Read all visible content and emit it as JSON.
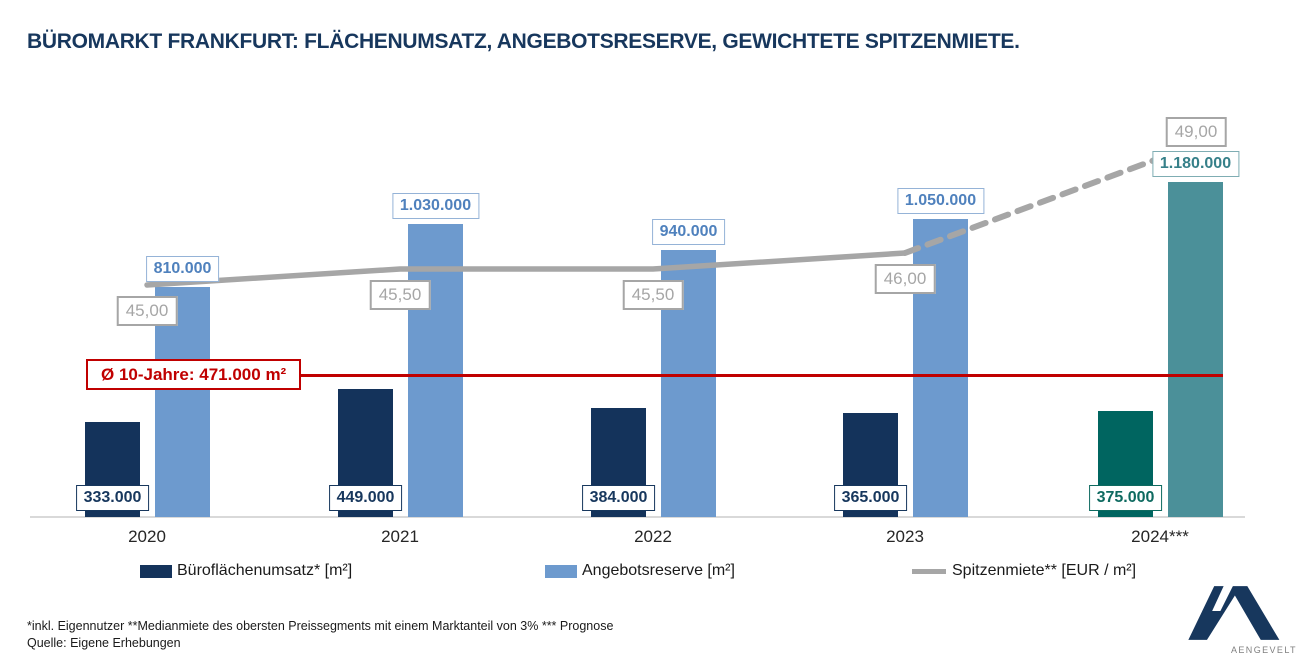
{
  "title": "BÜROMARKT FRANKFURT: FLÄCHENUMSATZ, ANGEBOTSRESERVE, GEWICHTETE SPITZENMIETE.",
  "chart_data": {
    "type": "bar",
    "subtype": "grouped-bar-with-line-combo",
    "categories": [
      "2020",
      "2021",
      "2022",
      "2023",
      "2024***"
    ],
    "series": [
      {
        "name": "Büroflächenumsatz* [m²]",
        "chart_type": "bar",
        "values": [
          333000,
          449000,
          384000,
          365000,
          375000
        ],
        "labels": [
          "333.000",
          "449.000",
          "384.000",
          "365.000",
          "375.000"
        ],
        "color": "#14335B",
        "forecast_color": "#006560",
        "label_color": "#17375D",
        "forecast_label_color": "#0E6A60"
      },
      {
        "name": "Angebotsreserve [m²]",
        "chart_type": "bar",
        "values": [
          810000,
          1030000,
          940000,
          1050000,
          1180000
        ],
        "labels": [
          "810.000",
          "1.030.000",
          "940.000",
          "1.050.000",
          "1.180.000"
        ],
        "color": "#6D9ACE",
        "forecast_color": "#4B9099",
        "label_color": "#4F81BD",
        "forecast_label_color": "#368089",
        "label_border_color": "#95B3D7",
        "forecast_label_border_color": "#7FADB3"
      },
      {
        "name": "Spitzenmiete** [EUR / m²]",
        "chart_type": "line",
        "values": [
          45.0,
          45.5,
          45.5,
          46.0,
          49.0
        ],
        "labels": [
          "45,00",
          "45,50",
          "45,50",
          "46,00",
          "49,00"
        ],
        "color": "#A6A6A6",
        "label_color": "#A6A6A6",
        "dashed_segment": "2023 to 2024*** (Prognose)"
      }
    ],
    "reference_line": {
      "value": 471000,
      "label": "Ø 10-Jahre: 471.000 m²",
      "color": "#C00000"
    },
    "axes": {
      "x": "category",
      "y_primary": "hidden",
      "y_secondary": "hidden"
    },
    "grid": "off",
    "legend_position": "bottom"
  },
  "legend": {
    "items": [
      {
        "label": "Büroflächenumsatz* [m²]",
        "swatch": "navy-square",
        "color": "#14335B"
      },
      {
        "label": "Angebotsreserve [m²]",
        "swatch": "blue-square",
        "color": "#6D9ACE"
      },
      {
        "label": "Spitzenmiete** [EUR / m²]",
        "swatch": "gray-line",
        "color": "#A6A6A6"
      }
    ]
  },
  "footnotes": {
    "line1": "*inkl. Eigennutzer **Medianmiete des obersten Preissegments mit einem Marktanteil von 3% *** Prognose",
    "line2": "Quelle: Eigene Erhebungen"
  },
  "logo": {
    "text": "AENGEVELT"
  }
}
